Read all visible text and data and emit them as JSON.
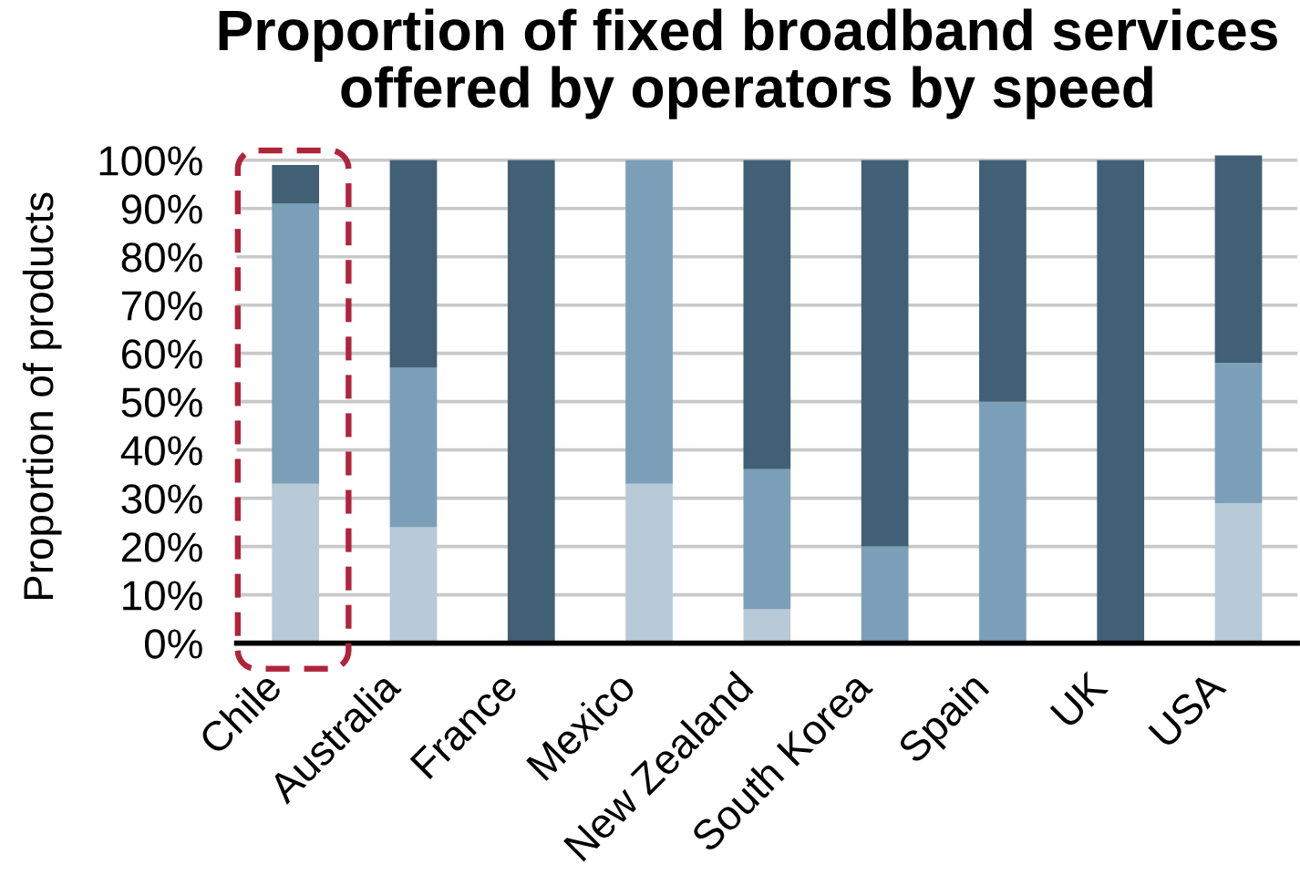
{
  "chart_data": {
    "type": "bar",
    "title": "Proportion of fixed broadband services\noffered by operators by speed",
    "ylabel": "Proportion of products",
    "categories": [
      "Chile",
      "Australia",
      "France",
      "Mexico",
      "New Zealand",
      "South Korea",
      "Spain",
      "UK",
      "USA"
    ],
    "series": [
      {
        "color": "#b8c9d8",
        "values": [
          33,
          24,
          0,
          33,
          7,
          0,
          0,
          0,
          29
        ]
      },
      {
        "color": "#7b9fb8",
        "values": [
          58,
          33,
          0,
          67,
          29,
          20,
          50,
          0,
          29
        ]
      },
      {
        "color": "#416075",
        "values": [
          8,
          43,
          100,
          0,
          64,
          80,
          50,
          100,
          43
        ]
      }
    ],
    "stacked": true,
    "ylim": [
      0,
      102
    ],
    "yticks": [
      {
        "value": 0,
        "label": "0%"
      },
      {
        "value": 10,
        "label": "10%"
      },
      {
        "value": 20,
        "label": "20%"
      },
      {
        "value": 30,
        "label": "30%"
      },
      {
        "value": 40,
        "label": "40%"
      },
      {
        "value": 50,
        "label": "50%"
      },
      {
        "value": 60,
        "label": "60%"
      },
      {
        "value": 70,
        "label": "70%"
      },
      {
        "value": 80,
        "label": "80%"
      },
      {
        "value": 90,
        "label": "90%"
      },
      {
        "value": 100,
        "label": "100%"
      }
    ],
    "grid": "y"
  }
}
